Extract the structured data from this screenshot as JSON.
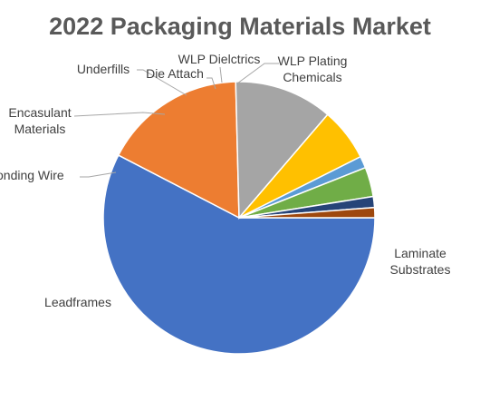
{
  "chart_data": {
    "type": "pie",
    "title": "2022 Packaging Materials Market",
    "slices": [
      {
        "label": "Laminate Substrates",
        "label_lines": [
          "Laminate",
          "Substrates"
        ],
        "value": 57.6,
        "color": "#4472C4"
      },
      {
        "label": "Leadframes",
        "label_lines": [
          "Leadframes"
        ],
        "value": 17.0,
        "color": "#ED7D31"
      },
      {
        "label": "Bonding Wire",
        "label_lines": [
          "onding Wire"
        ],
        "value": 11.7,
        "color": "#A5A5A5"
      },
      {
        "label": "Encasulant Materials",
        "label_lines": [
          "Encasulant",
          "Materials"
        ],
        "value": 6.3,
        "color": "#FFC000"
      },
      {
        "label": "Underfills",
        "label_lines": [
          "Underfills"
        ],
        "value": 1.4,
        "color": "#5B9BD5"
      },
      {
        "label": "Die Attach",
        "label_lines": [
          "Die Attach"
        ],
        "value": 3.5,
        "color": "#70AD47"
      },
      {
        "label": "WLP Dielctrics",
        "label_lines": [
          "WLP Dielctrics"
        ],
        "value": 1.3,
        "color": "#264478"
      },
      {
        "label": "WLP Plating Chemicals",
        "label_lines": [
          "WLP Plating",
          "Chemicals"
        ],
        "value": 1.2,
        "color": "#9E480E"
      }
    ],
    "legend": "none",
    "data_labels": "category name, outside with leader lines"
  }
}
